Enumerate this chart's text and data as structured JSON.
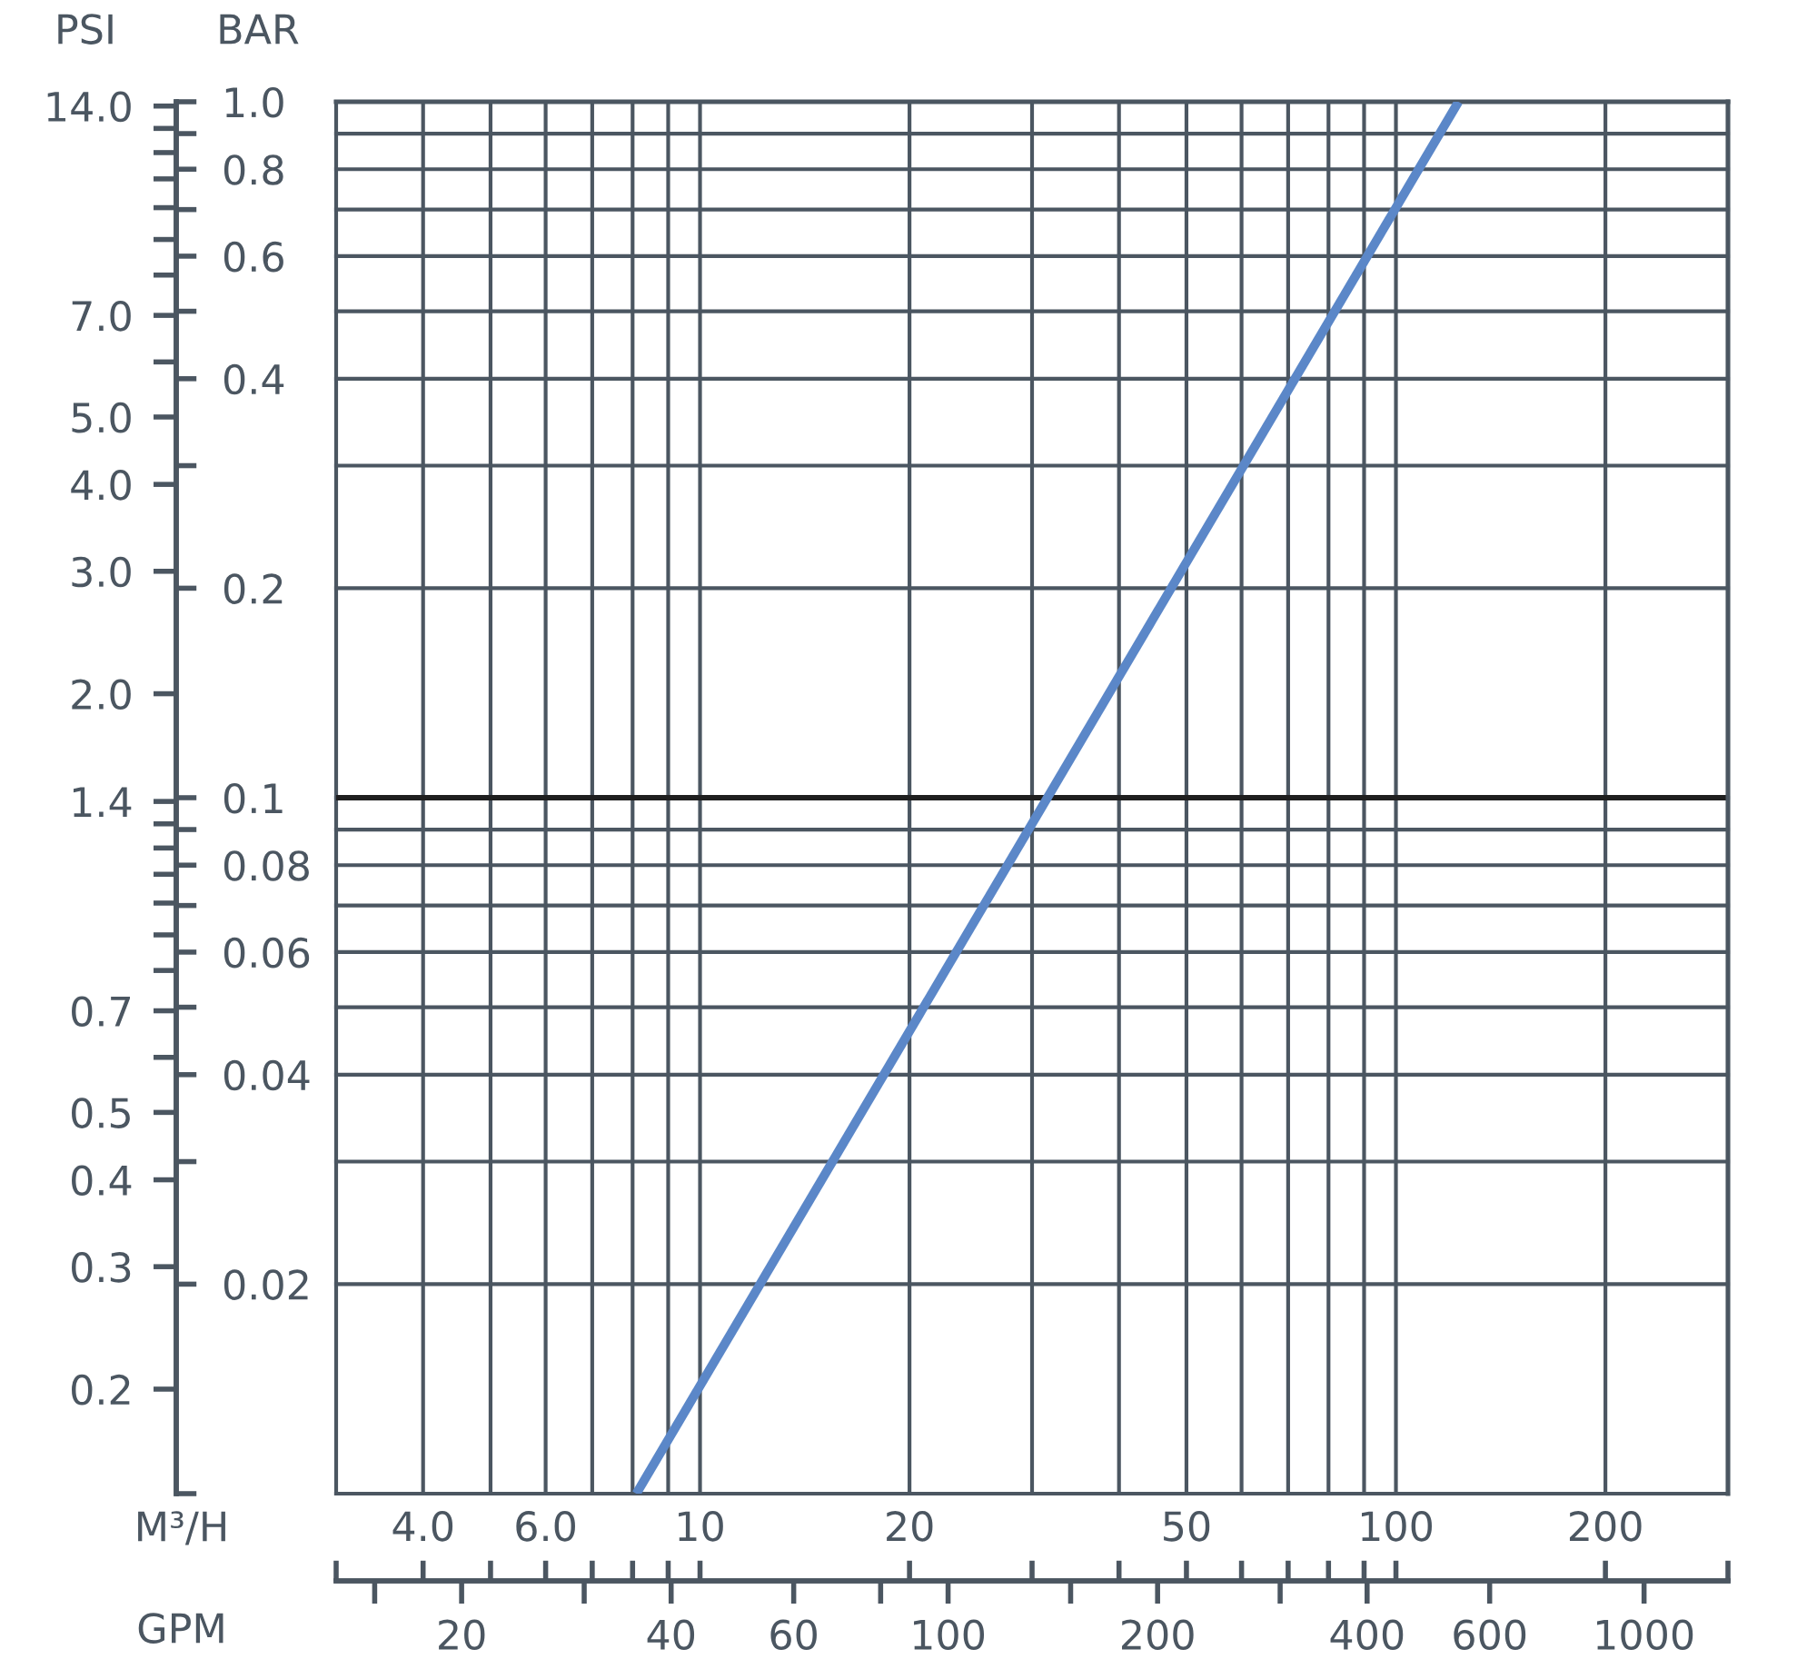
{
  "chart_data": [
    {
      "type": "line",
      "xlabel": "M³/H",
      "ylabel": "BAR",
      "series": [
        {
          "color": "#5b87c8",
          "x": [
            8.1,
            123
          ],
          "values": [
            0.01,
            1.0
          ]
        }
      ],
      "xlim": [
        3,
        300
      ],
      "xticks": [
        {
          "value": 3,
          "label": null
        },
        {
          "value": 4,
          "label": "4.0"
        },
        {
          "value": 5,
          "label": null
        },
        {
          "value": 6,
          "label": "6.0"
        },
        {
          "value": 7,
          "label": null
        },
        {
          "value": 8,
          "label": null
        },
        {
          "value": 9,
          "label": null
        },
        10,
        20,
        {
          "value": 30,
          "label": null
        },
        {
          "value": 40,
          "label": null
        },
        50,
        {
          "value": 60,
          "label": null
        },
        {
          "value": 70,
          "label": null
        },
        {
          "value": 80,
          "label": null
        },
        {
          "value": 90,
          "label": null
        },
        100,
        200,
        {
          "value": 300,
          "label": null
        }
      ],
      "ylim": [
        0.01,
        1.0
      ],
      "yticks": [
        {
          "value": 0.01,
          "label": null
        },
        0.02,
        {
          "value": 0.03,
          "label": null
        },
        0.04,
        {
          "value": 0.05,
          "label": null
        },
        0.06,
        {
          "value": 0.07,
          "label": null
        },
        0.08,
        {
          "value": 0.09,
          "label": null
        },
        0.1,
        0.2,
        {
          "value": 0.3,
          "label": null
        },
        0.4,
        {
          "value": 0.5,
          "label": null
        },
        0.6,
        {
          "value": 0.7,
          "label": null
        },
        0.8,
        {
          "value": 0.9,
          "label": null
        },
        {
          "value": 1,
          "label": "1.0"
        }
      ],
      "log": "xy",
      "grid": true,
      "ref_lines": [
        {
          "axis": "y",
          "value": 0.1,
          "color": "#1f1f1f"
        }
      ]
    },
    {
      "type": "line",
      "xlabel": "GPM",
      "ylabel": "PSI",
      "xlim": [
        7.78,
        1320
      ],
      "xticks": [
        {
          "value": 15,
          "label": null
        },
        20,
        {
          "value": 30,
          "label": null
        },
        40,
        60,
        {
          "value": 80,
          "label": null
        },
        100,
        {
          "value": 150,
          "label": null
        },
        200,
        {
          "value": 300,
          "label": null
        },
        400,
        600,
        1000
      ],
      "ylim": [
        0.106,
        14.2
      ],
      "yticks": [
        0.2,
        0.3,
        0.4,
        0.5,
        {
          "value": 0.6,
          "label": null
        },
        0.7,
        {
          "value": 0.8,
          "label": null
        },
        {
          "value": 0.9,
          "label": null
        },
        {
          "value": 1.0,
          "label": null
        },
        {
          "value": 1.1,
          "label": null
        },
        {
          "value": 1.2,
          "label": null
        },
        {
          "value": 1.3,
          "label": null
        },
        1.4,
        {
          "value": 2,
          "label": "2.0"
        },
        {
          "value": 3,
          "label": "3.0"
        },
        {
          "value": 4,
          "label": "4.0"
        },
        {
          "value": 5,
          "label": "5.0"
        },
        {
          "value": 6,
          "label": null
        },
        {
          "value": 7,
          "label": "7.0"
        },
        {
          "value": 8,
          "label": null
        },
        {
          "value": 9,
          "label": null
        },
        {
          "value": 10,
          "label": null
        },
        {
          "value": 11,
          "label": null
        },
        {
          "value": 12,
          "label": null
        },
        {
          "value": 13,
          "label": null
        },
        {
          "value": 14,
          "label": "14.0"
        }
      ],
      "log": "xy"
    }
  ]
}
